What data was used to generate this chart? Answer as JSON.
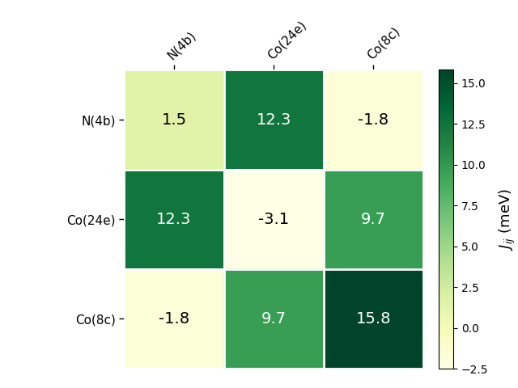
{
  "matrix": [
    [
      1.5,
      12.3,
      -1.8
    ],
    [
      12.3,
      -3.1,
      9.7
    ],
    [
      -1.8,
      9.7,
      15.8
    ]
  ],
  "row_labels": [
    "N(4b)",
    "Co(24e)",
    "Co(8c)"
  ],
  "col_labels": [
    "N(4b)",
    "Co(24e)",
    "Co(8c)"
  ],
  "colorbar_label": "$J_{ij}$ (meV)",
  "vmin": -2.5,
  "vmax": 15.8,
  "cmap": "YlGn",
  "figsize": [
    6.4,
    4.8
  ],
  "dpi": 100,
  "annotation_fontsize": 14,
  "tick_fontsize": 11,
  "colorbar_tick_fontsize": 10,
  "colorbar_label_fontsize": 13
}
